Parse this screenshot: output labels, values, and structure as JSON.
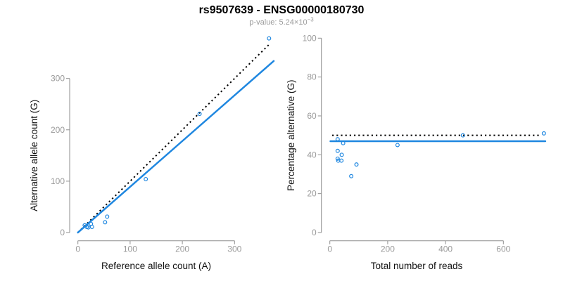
{
  "header": {
    "title": "rs9507639 - ENSG00000180730",
    "subtitle_prefix": "p-value: 5.24×10",
    "subtitle_exponent": "−3"
  },
  "colors": {
    "accent_blue": "#1f87e0",
    "identity_black": "#000000",
    "axis_gray": "#8e8e8e",
    "tick_label_gray": "#999999",
    "axis_title": "#111111",
    "subtitle_gray": "#9b9b9b",
    "background": "#ffffff"
  },
  "chart_data": [
    {
      "type": "scatter",
      "title": "rs9507639 - ENSG00000180730",
      "xlabel": "Reference allele count (A)",
      "ylabel": "Alternative allele count (G)",
      "xticks": [
        0,
        100,
        200,
        300
      ],
      "yticks": [
        0,
        100,
        200,
        300
      ],
      "xlim": [
        0,
        377
      ],
      "ylim": [
        0,
        385
      ],
      "grid": false,
      "legend": "none",
      "marker": "open-circle",
      "points": [
        [
          13,
          14
        ],
        [
          17,
          11
        ],
        [
          20,
          10
        ],
        [
          25,
          17
        ],
        [
          27,
          11
        ],
        [
          52,
          20
        ],
        [
          56,
          31
        ],
        [
          130,
          104
        ],
        [
          233,
          231
        ],
        [
          366,
          378
        ]
      ],
      "lines": [
        {
          "name": "identity-line",
          "x1": 0,
          "y1": 0,
          "x2": 368,
          "y2": 368,
          "dashed": true,
          "color_key": "identity_black",
          "width": 2
        },
        {
          "name": "fit-line",
          "x1": 0,
          "y1": 0,
          "x2": 375,
          "y2": 334,
          "dashed": false,
          "color_key": "accent_blue",
          "width": 2.5
        }
      ]
    },
    {
      "type": "scatter",
      "title": "rs9507639 - ENSG00000180730",
      "xlabel": "Total number of reads",
      "ylabel": "Percentage alternative (G)",
      "xticks": [
        0,
        200,
        400,
        600
      ],
      "yticks": [
        0,
        20,
        40,
        60,
        80,
        100
      ],
      "xlim": [
        0,
        745
      ],
      "ylim": [
        0,
        100
      ],
      "grid": false,
      "legend": "none",
      "marker": "open-circle",
      "points": [
        [
          27,
          48
        ],
        [
          46,
          46
        ],
        [
          27,
          42
        ],
        [
          41,
          40
        ],
        [
          27,
          38
        ],
        [
          29,
          37
        ],
        [
          40,
          37
        ],
        [
          92,
          35
        ],
        [
          74,
          29
        ],
        [
          234,
          45
        ],
        [
          460,
          50
        ],
        [
          740,
          51
        ]
      ],
      "lines": [
        {
          "name": "identity-line",
          "x1": 8,
          "y1": 50,
          "x2": 730,
          "y2": 50,
          "dashed": true,
          "color_key": "identity_black",
          "width": 2
        },
        {
          "name": "fit-line",
          "x1": 2,
          "y1": 47,
          "x2": 745,
          "y2": 47,
          "dashed": false,
          "color_key": "accent_blue",
          "width": 2.5
        }
      ]
    }
  ]
}
